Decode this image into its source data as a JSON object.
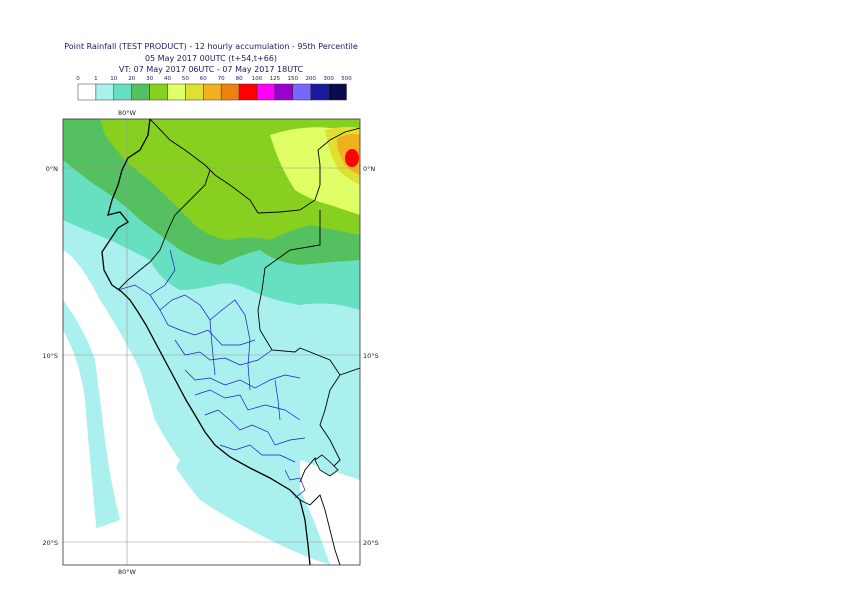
{
  "title": {
    "line1": "Point Rainfall (TEST PRODUCT) - 12 hourly accumulation - 95th Percentile",
    "line2": "05 May 2017 00UTC (t+54,t+66)",
    "line3": "VT: 07 May 2017 06UTC - 07 May 2017 18UTC"
  },
  "legend": {
    "thresholds": [
      "0",
      "1",
      "10",
      "20",
      "30",
      "40",
      "50",
      "60",
      "70",
      "80",
      "100",
      "125",
      "150",
      "200",
      "300",
      "500"
    ],
    "colors": [
      "#ffffff",
      "#aaf0ee",
      "#66e0c0",
      "#55c060",
      "#88d020",
      "#e0ff66",
      "#e0e030",
      "#f0b020",
      "#f08010",
      "#ff0000",
      "#ff00ff",
      "#9900cc",
      "#7766ff",
      "#1a1aa0",
      "#0a0a50"
    ]
  },
  "map": {
    "lon_labels": {
      "top": "80°W",
      "bottom": "80°W"
    },
    "lat_labels": [
      "0°N",
      "10°S",
      "20°S"
    ]
  }
}
